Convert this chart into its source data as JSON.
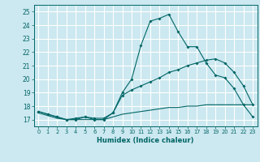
{
  "title": "",
  "xlabel": "Humidex (Indice chaleur)",
  "bg_color": "#cce8f0",
  "grid_color": "#ffffff",
  "line_color": "#006666",
  "xlim": [
    -0.5,
    23.5
  ],
  "ylim": [
    16.5,
    25.5
  ],
  "xticks": [
    0,
    1,
    2,
    3,
    4,
    5,
    6,
    7,
    8,
    9,
    10,
    11,
    12,
    13,
    14,
    15,
    16,
    17,
    18,
    19,
    20,
    21,
    22,
    23
  ],
  "yticks": [
    17,
    18,
    19,
    20,
    21,
    22,
    23,
    24,
    25
  ],
  "line1": {
    "x": [
      0,
      1,
      2,
      3,
      4,
      5,
      6,
      7,
      8,
      9,
      10,
      11,
      12,
      13,
      14,
      15,
      16,
      17,
      18,
      19,
      20,
      21,
      22,
      23
    ],
    "y": [
      17.6,
      17.4,
      17.2,
      17.0,
      17.0,
      17.2,
      17.0,
      17.0,
      17.5,
      19.0,
      20.0,
      22.5,
      24.3,
      24.5,
      24.8,
      23.5,
      22.4,
      22.4,
      21.2,
      20.3,
      20.1,
      19.3,
      18.1,
      17.2
    ]
  },
  "line2": {
    "x": [
      0,
      1,
      2,
      3,
      4,
      5,
      6,
      7,
      8,
      9,
      10,
      11,
      12,
      13,
      14,
      15,
      16,
      17,
      18,
      19,
      20,
      21,
      22,
      23
    ],
    "y": [
      17.6,
      17.4,
      17.2,
      17.0,
      17.1,
      17.2,
      17.1,
      17.1,
      17.5,
      18.8,
      19.2,
      19.5,
      19.8,
      20.1,
      20.5,
      20.7,
      21.0,
      21.2,
      21.4,
      21.5,
      21.2,
      20.5,
      19.5,
      18.1
    ]
  },
  "line3": {
    "x": [
      0,
      1,
      2,
      3,
      4,
      5,
      6,
      7,
      8,
      9,
      10,
      11,
      12,
      13,
      14,
      15,
      16,
      17,
      18,
      19,
      20,
      21,
      22,
      23
    ],
    "y": [
      17.5,
      17.3,
      17.1,
      17.0,
      17.0,
      17.0,
      17.0,
      17.0,
      17.2,
      17.4,
      17.5,
      17.6,
      17.7,
      17.8,
      17.9,
      17.9,
      18.0,
      18.0,
      18.1,
      18.1,
      18.1,
      18.1,
      18.1,
      18.1
    ]
  }
}
